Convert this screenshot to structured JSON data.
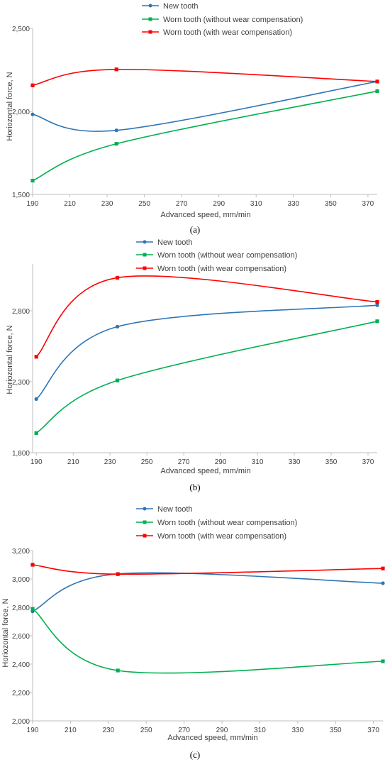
{
  "chart_data": [
    {
      "type": "line",
      "caption": "(a)",
      "xlabel": "Advanced speed, mm/min",
      "ylabel": "Horiozontal force, N",
      "xlim": [
        190,
        375
      ],
      "ylim": [
        1500,
        2500
      ],
      "xticks": [
        190,
        210,
        230,
        250,
        270,
        290,
        310,
        330,
        350,
        370
      ],
      "yticks": [
        1500,
        2000,
        2500
      ],
      "yticklabels": [
        "1,500",
        "2,000",
        "2,500"
      ],
      "legend_position": "top",
      "series": [
        {
          "name": "New tooth",
          "color": "#2e75b6",
          "marker": "circle",
          "x": [
            190,
            235,
            375
          ],
          "y": [
            1982,
            1886,
            2180
          ]
        },
        {
          "name": "Worn tooth (without wear compensation)",
          "color": "#00b050",
          "marker": "square",
          "x": [
            190,
            235,
            375
          ],
          "y": [
            1583,
            1805,
            2122
          ]
        },
        {
          "name": "Worn tooth (with wear compensation)",
          "color": "#ff0000",
          "marker": "square",
          "x": [
            190,
            235,
            375
          ],
          "y": [
            2157,
            2253,
            2180
          ]
        }
      ]
    },
    {
      "type": "line",
      "caption": "(b)",
      "xlabel": "Advanced speed, mm/min",
      "ylabel": "Horiozontal force, N",
      "xlim": [
        188,
        375
      ],
      "ylim": [
        1800,
        3130
      ],
      "xticks": [
        190,
        210,
        230,
        250,
        270,
        290,
        310,
        330,
        350,
        370
      ],
      "yticks": [
        1800,
        2300,
        2800
      ],
      "yticklabels": [
        "1,800",
        "2,300",
        "2,800"
      ],
      "legend_position": "top",
      "series": [
        {
          "name": "New tooth",
          "color": "#2e75b6",
          "marker": "circle",
          "x": [
            190,
            234,
            375
          ],
          "y": [
            2178,
            2688,
            2839
          ]
        },
        {
          "name": "Worn tooth (without wear compensation)",
          "color": "#00b050",
          "marker": "square",
          "x": [
            190,
            234,
            375
          ],
          "y": [
            1938,
            2309,
            2726
          ]
        },
        {
          "name": "Worn tooth (with wear compensation)",
          "color": "#ff0000",
          "marker": "square",
          "x": [
            190,
            234,
            375
          ],
          "y": [
            2476,
            3033,
            2862
          ]
        }
      ]
    },
    {
      "type": "line",
      "caption": "(c)",
      "xlabel": "Advanced speed, mm/min",
      "ylabel": "Horiozontal force, N",
      "xlim": [
        190,
        375
      ],
      "ylim": [
        2000,
        3200
      ],
      "xticks": [
        190,
        210,
        230,
        250,
        270,
        290,
        310,
        330,
        350,
        370
      ],
      "yticks": [
        2000,
        2200,
        2400,
        2600,
        2800,
        3000,
        3200
      ],
      "yticklabels": [
        "2,000",
        "2,200",
        "2,400",
        "2,600",
        "2,800",
        "3,000",
        "3,200"
      ],
      "legend_position": "top",
      "series": [
        {
          "name": "New tooth",
          "color": "#2e75b6",
          "marker": "circle",
          "x": [
            190,
            235,
            375
          ],
          "y": [
            2772,
            3036,
            2970
          ]
        },
        {
          "name": "Worn tooth (without wear compensation)",
          "color": "#00b050",
          "marker": "square",
          "x": [
            190,
            235,
            375
          ],
          "y": [
            2790,
            2355,
            2420
          ]
        },
        {
          "name": "Worn tooth (with wear compensation)",
          "color": "#ff0000",
          "marker": "square",
          "x": [
            190,
            235,
            375
          ],
          "y": [
            3100,
            3034,
            3074
          ]
        }
      ]
    }
  ]
}
